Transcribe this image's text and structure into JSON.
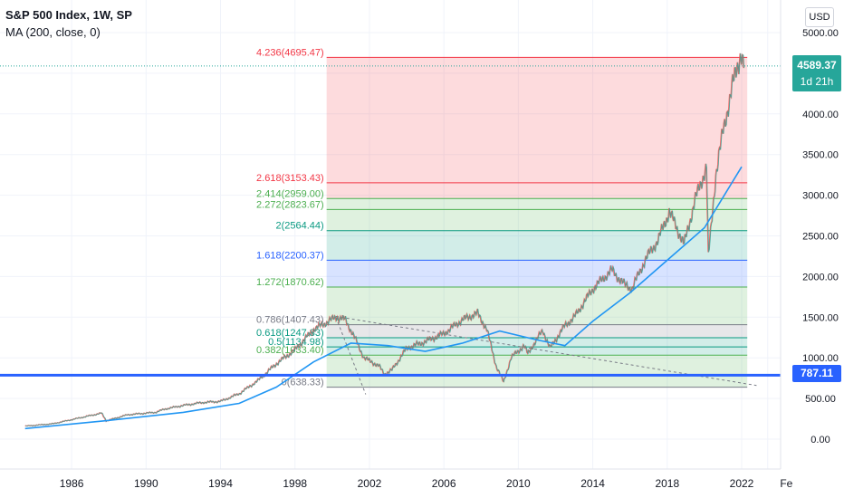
{
  "legend": {
    "title": "S&P 500 Index, 1W, SP",
    "indicator": "MA (200, close, 0)"
  },
  "currency_button": "USD",
  "current_price": {
    "value": "4589.37",
    "countdown": "1d 21h"
  },
  "horizontal_line_label": "787.11",
  "colors": {
    "price_up": "#26a69a",
    "price_down": "#ef5350",
    "ma_line": "#2196f3",
    "horizontal_line": "#2962ff",
    "fib_red": "#f23645",
    "fib_green": "#4caf50",
    "fib_teal": "#089981",
    "fib_blue": "#2962ff",
    "fib_gray": "#787b86"
  },
  "chart_data": {
    "type": "line",
    "x_ticks": [
      "1986",
      "1990",
      "1994",
      "1998",
      "2002",
      "2006",
      "2010",
      "2014",
      "2018",
      "2022",
      "Fe"
    ],
    "y_ticks": [
      "0.00",
      "500.00",
      "1000.00",
      "1500.00",
      "2000.00",
      "2500.00",
      "3000.00",
      "3500.00",
      "4000.00",
      "4500.00",
      "5000.00"
    ],
    "ylim": [
      -100,
      5100
    ],
    "series": [
      {
        "role": "price",
        "points": [
          [
            1983.5,
            160
          ],
          [
            1985,
            190
          ],
          [
            1986,
            240
          ],
          [
            1987.6,
            320
          ],
          [
            1987.85,
            225
          ],
          [
            1989,
            300
          ],
          [
            1990.5,
            330
          ],
          [
            1991,
            370
          ],
          [
            1992,
            415
          ],
          [
            1993,
            450
          ],
          [
            1994,
            465
          ],
          [
            1995,
            560
          ],
          [
            1996,
            720
          ],
          [
            1997,
            930
          ],
          [
            1998,
            1100
          ],
          [
            1999,
            1350
          ],
          [
            2000.2,
            1500
          ],
          [
            2000.7,
            1470
          ],
          [
            2001.3,
            1200
          ],
          [
            2001.7,
            1000
          ],
          [
            2002.5,
            900
          ],
          [
            2002.8,
            800
          ],
          [
            2003.2,
            850
          ],
          [
            2004,
            1120
          ],
          [
            2005,
            1200
          ],
          [
            2006,
            1300
          ],
          [
            2007,
            1470
          ],
          [
            2007.8,
            1550
          ],
          [
            2008.3,
            1350
          ],
          [
            2008.8,
            900
          ],
          [
            2009.2,
            700
          ],
          [
            2009.6,
            1000
          ],
          [
            2010.3,
            1150
          ],
          [
            2010.5,
            1050
          ],
          [
            2011.3,
            1340
          ],
          [
            2011.7,
            1120
          ],
          [
            2012.5,
            1400
          ],
          [
            2013,
            1500
          ],
          [
            2014,
            1850
          ],
          [
            2015,
            2080
          ],
          [
            2015.7,
            1900
          ],
          [
            2016.1,
            1850
          ],
          [
            2016.8,
            2200
          ],
          [
            2017.5,
            2450
          ],
          [
            2018.1,
            2800
          ],
          [
            2018.9,
            2400
          ],
          [
            2019.5,
            2950
          ],
          [
            2020.1,
            3350
          ],
          [
            2020.2,
            2237
          ],
          [
            2020.6,
            3250
          ],
          [
            2021,
            3800
          ],
          [
            2021.5,
            4350
          ],
          [
            2021.95,
            4750
          ],
          [
            2022.1,
            4589.37
          ]
        ]
      },
      {
        "name": "MA (200, close, 0)",
        "points": [
          [
            1983.5,
            130
          ],
          [
            1988,
            230
          ],
          [
            1992,
            330
          ],
          [
            1995,
            440
          ],
          [
            1997,
            640
          ],
          [
            1999,
            950
          ],
          [
            2001,
            1180
          ],
          [
            2003,
            1150
          ],
          [
            2005,
            1080
          ],
          [
            2007,
            1180
          ],
          [
            2009,
            1330
          ],
          [
            2011,
            1220
          ],
          [
            2012.5,
            1150
          ],
          [
            2014,
            1450
          ],
          [
            2016,
            1800
          ],
          [
            2018,
            2200
          ],
          [
            2020,
            2600
          ],
          [
            2022,
            3350
          ]
        ]
      }
    ],
    "horizontal_line": 787.11,
    "fib_extension": {
      "x_start": 1999.7,
      "x_end": 2022.3,
      "levels": [
        {
          "ratio": 0,
          "value": 638.33,
          "label": "0(638.33)",
          "color": "#787b86"
        },
        {
          "ratio": 0.382,
          "value": 1033.4,
          "label": "0.382(1033.40)",
          "color": "#4caf50"
        },
        {
          "ratio": 0.5,
          "value": 1134.98,
          "label": "0.5(1134.98)",
          "color": "#089981"
        },
        {
          "ratio": 0.618,
          "value": 1247.33,
          "label": "0.618(1247.33)",
          "color": "#089981"
        },
        {
          "ratio": 0.786,
          "value": 1407.43,
          "label": "0.786(1407.43)",
          "color": "#787b86"
        },
        {
          "ratio": 1.272,
          "value": 1870.62,
          "label": "1.272(1870.62)",
          "color": "#4caf50"
        },
        {
          "ratio": 1.618,
          "value": 2200.37,
          "label": "1.618(2200.37)",
          "color": "#2962ff"
        },
        {
          "ratio": 2,
          "value": 2564.44,
          "label": "2(2564.44)",
          "color": "#089981"
        },
        {
          "ratio": 2.272,
          "value": 2823.67,
          "label": "2.272(2823.67)",
          "color": "#4caf50"
        },
        {
          "ratio": 2.414,
          "value": 2959.0,
          "label": "2.414(2959.00)",
          "color": "#4caf50"
        },
        {
          "ratio": 2.618,
          "value": 3153.43,
          "label": "2.618(3153.43)",
          "color": "#f23645"
        },
        {
          "ratio": 4.236,
          "value": 4695.47,
          "label": "4.236(4695.47)",
          "color": "#f23645"
        }
      ]
    },
    "trend_line": [
      [
        2000.2,
        1510
      ],
      [
        2022.8,
        660
      ]
    ]
  }
}
